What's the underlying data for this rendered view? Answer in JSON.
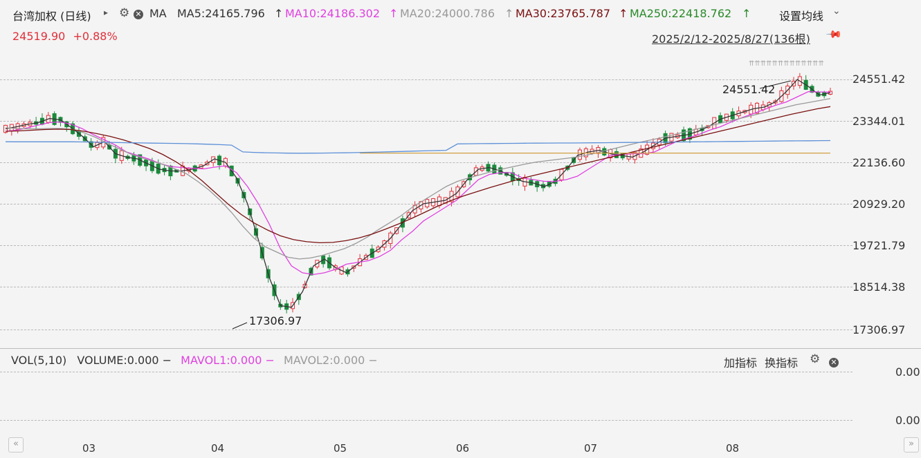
{
  "header": {
    "instrument": "台湾加权 (日线)",
    "expand_arrow": "▸",
    "indicator": "MA",
    "ma5": "MA5:24165.796",
    "ma10": "MA10:24186.302",
    "ma20": "MA20:24000.786",
    "ma30": "MA30:23765.787",
    "ma250": "MA250:22418.762",
    "settings_label": "设置均线",
    "up_arrow": "↑",
    "chevron": "⌄"
  },
  "quote": {
    "price": "24519.90",
    "change": "+0.88%"
  },
  "range_label": "2025/2/12-2025/8/27(136根)",
  "price_axis": [
    "24551.42",
    "23344.01",
    "22136.60",
    "20929.20",
    "19721.79",
    "18514.38",
    "17306.97"
  ],
  "annotations": {
    "high": "24551.42",
    "low": "17306.97"
  },
  "volume_panel": {
    "title": "VOL(5,10)",
    "volume": "VOLUME:0.000",
    "mavol1": "MAVOL1:0.000",
    "mavol2": "MAVOL2:0.000",
    "dash": "−",
    "add_indicator": "加指标",
    "switch_indicator": "换指标",
    "axis_top": "0.00",
    "axis_bottom": "0.00"
  },
  "x_axis": [
    "03",
    "04",
    "05",
    "06",
    "07",
    "08"
  ],
  "nav": {
    "left": "«",
    "right": "»"
  },
  "colors": {
    "up": "#e0303a",
    "down": "#1a8a3c",
    "ma5": "#333333",
    "ma10": "#e040e0",
    "ma20": "#999999",
    "ma30": "#7a1010",
    "ma60": "#5b8fd8",
    "ma250": "#d0a040"
  },
  "chart_data": {
    "type": "candlestick",
    "title": "台湾加权 (日线)",
    "y_range": [
      17306.97,
      24551.42
    ],
    "x_ticks": [
      "03",
      "04",
      "05",
      "06",
      "07",
      "08"
    ],
    "series": [
      {
        "name": "MA5",
        "values": [
          23120,
          23180,
          23250,
          23300,
          23420,
          23380,
          23150,
          22900,
          22600,
          22750,
          22400,
          22300,
          22250,
          22100,
          21950,
          21900,
          21900,
          21950,
          22050,
          22250,
          22150,
          21700,
          20950,
          19900,
          18800,
          18000,
          17950,
          18400,
          19150,
          19350,
          19100,
          18950,
          19200,
          19450,
          19650,
          19950,
          20350,
          20750,
          20950,
          21000,
          21050,
          21250,
          21650,
          21950,
          22000,
          21900,
          21750,
          21600,
          21550,
          21450,
          21600,
          21950,
          22350,
          22450,
          22500,
          22400,
          22350,
          22300,
          22450,
          22650,
          22850,
          22900,
          22950,
          23050,
          23200,
          23400,
          23500,
          23600,
          23700,
          23750,
          23900,
          24200,
          24550,
          24350,
          24100,
          24165
        ]
      },
      {
        "name": "MA10",
        "values": [
          23050,
          23080,
          23150,
          23230,
          23300,
          23320,
          23250,
          23120,
          22950,
          22800,
          22650,
          22450,
          22350,
          22250,
          22120,
          22030,
          22000,
          21980,
          21960,
          22010,
          22050,
          21850,
          21450,
          20950,
          20350,
          19650,
          19150,
          18950,
          18900,
          18950,
          19050,
          19200,
          19250,
          19300,
          19420,
          19600,
          19900,
          20150,
          20450,
          20650,
          20850,
          21050,
          21350,
          21650,
          21800,
          21850,
          21850,
          21700,
          21650,
          21600,
          21600,
          21650,
          21750,
          21950,
          22150,
          22350,
          22380,
          22400,
          22400,
          22450,
          22600,
          22750,
          22850,
          22950,
          23080,
          23180,
          23320,
          23450,
          23560,
          23680,
          23800,
          23900,
          24050,
          24200,
          24190,
          24186
        ]
      },
      {
        "name": "MA20",
        "values": [
          23150,
          23130,
          23120,
          23120,
          23130,
          23130,
          23100,
          23000,
          22870,
          22700,
          22550,
          22400,
          22290,
          22180,
          22080,
          21960,
          21820,
          21600,
          21350,
          21050,
          20700,
          20300,
          19950,
          19700,
          19550,
          19400,
          19350,
          19380,
          19450,
          19550,
          19650,
          19800,
          19980,
          20200,
          20400,
          20600,
          20850,
          21050,
          21250,
          21450,
          21600,
          21700,
          21790,
          21880,
          21960,
          22030,
          22100,
          22160,
          22200,
          22240,
          22280,
          22330,
          22400,
          22480,
          22560,
          22640,
          22720,
          22790,
          22860,
          22940,
          23020,
          23100,
          23180,
          23260,
          23340,
          23420,
          23500,
          23580,
          23660,
          23740,
          23820,
          23880,
          23940,
          24000
        ]
      },
      {
        "name": "MA30",
        "values": [
          23050,
          23060,
          23080,
          23100,
          23110,
          23100,
          23050,
          22980,
          22900,
          22800,
          22680,
          22550,
          22380,
          22170,
          21920,
          21620,
          21280,
          20940,
          20640,
          20390,
          20190,
          20020,
          19910,
          19850,
          19820,
          19830,
          19880,
          19960,
          20070,
          20210,
          20360,
          20520,
          20700,
          20880,
          21040,
          21180,
          21300,
          21420,
          21530,
          21640,
          21740,
          21830,
          21920,
          22010,
          22100,
          22190,
          22280,
          22370,
          22460,
          22550,
          22640,
          22730,
          22820,
          22910,
          23000,
          23090,
          23180,
          23270,
          23360,
          23450,
          23540,
          23620,
          23700,
          23765
        ]
      },
      {
        "name": "MA250",
        "values": [
          22418,
          22418,
          22418,
          22418,
          22418,
          22418,
          22418,
          22418,
          22418,
          22418,
          22418,
          22418
        ]
      }
    ]
  }
}
